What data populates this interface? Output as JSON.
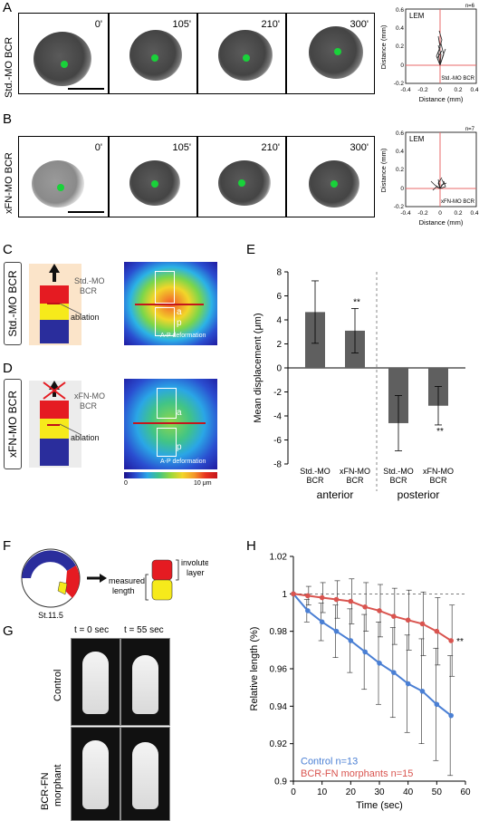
{
  "panels": {
    "A": "A",
    "B": "B",
    "C": "C",
    "D": "D",
    "E": "E",
    "F": "F",
    "G": "G",
    "H": "H"
  },
  "row_a": {
    "side_label": "Std.-MO BCR",
    "times": [
      "0'",
      "105'",
      "210'",
      "300'"
    ]
  },
  "row_b": {
    "side_label": "xFN-MO BCR",
    "times": [
      "0'",
      "105'",
      "210'",
      "300'"
    ]
  },
  "track_a": {
    "corner": "LEM",
    "n": "n=6",
    "inner": "Std.-MO BCR",
    "xlabel": "Distance (mm)",
    "ylabel": "Distance (mm)",
    "xticks": [
      "-0.4",
      "-0.2",
      "0",
      "0.2",
      "0.4"
    ],
    "yticks": [
      "0.6",
      "0.4",
      "0.2",
      "0",
      "-0.2"
    ]
  },
  "track_b": {
    "corner": "LEM",
    "n": "n=7",
    "inner": "xFN-MO BCR",
    "xlabel": "Distance (mm)",
    "ylabel": "Distance (mm)",
    "xticks": [
      "-0.4",
      "-0.2",
      "0",
      "0.2",
      "0.4"
    ],
    "yticks": [
      "0.6",
      "0.4",
      "0.2",
      "0",
      "-0.2"
    ]
  },
  "panel_c": {
    "side_label": "Std.-MO BCR",
    "tissue_label": "Std.-MO\nBCR",
    "ablation": "ablation",
    "map_a": "a",
    "map_p": "p",
    "map_caption": "A-P deformation"
  },
  "panel_d": {
    "side_label": "xFN-MO BCR",
    "tissue_label": "xFN-MO\nBCR",
    "ablation": "ablation",
    "map_a": "a",
    "map_p": "p",
    "map_caption": "A-P deformation"
  },
  "colorbar": {
    "min": "0",
    "max": "10 μm"
  },
  "panel_f": {
    "stage": "St.11.5",
    "measured": "measured\nlength",
    "involuted": "involuted\nlayer"
  },
  "panel_g": {
    "t0": "t = 0 sec",
    "t1": "t = 55 sec",
    "row1": "Control",
    "row2": "BCR-FN\nmorphant"
  },
  "colors": {
    "control": "#4a7fd4",
    "morphant": "#d9544f",
    "bar": "#5f5f5f",
    "dot": "#19d23a"
  },
  "chart_data": [
    {
      "type": "bar",
      "panel": "E",
      "ylabel": "Mean displacement (μm)",
      "ylim": [
        -8,
        8
      ],
      "yticks": [
        8,
        6,
        4,
        2,
        0,
        -2,
        -4,
        -6,
        -8
      ],
      "categories": [
        "Std.-MO\nBCR",
        "xFN-MO\nBCR",
        "Std.-MO\nBCR",
        "xFN-MO\nBCR"
      ],
      "groups": [
        "anterior",
        "posterior"
      ],
      "values": [
        4.65,
        3.1,
        -4.6,
        -3.15
      ],
      "errors": [
        2.6,
        1.85,
        2.3,
        1.6
      ],
      "significance": [
        "",
        "**",
        "",
        "**"
      ]
    },
    {
      "type": "line",
      "panel": "H",
      "xlabel": "Time (sec)",
      "ylabel": "Relative length (%)",
      "xlim": [
        0,
        60
      ],
      "ylim": [
        0.9,
        1.02
      ],
      "xticks": [
        0,
        10,
        20,
        30,
        40,
        50,
        60
      ],
      "yticks": [
        1.02,
        1,
        0.98,
        0.96,
        0.94,
        0.92,
        0.9
      ],
      "x": [
        0,
        5,
        10,
        15,
        20,
        25,
        30,
        35,
        40,
        45,
        50,
        55
      ],
      "series": [
        {
          "name": "Control n=13",
          "values": [
            1.0,
            0.991,
            0.985,
            0.98,
            0.975,
            0.969,
            0.963,
            0.958,
            0.952,
            0.948,
            0.941,
            0.935
          ],
          "errors": [
            0,
            0.006,
            0.01,
            0.014,
            0.017,
            0.02,
            0.022,
            0.024,
            0.026,
            0.028,
            0.03,
            0.032
          ]
        },
        {
          "name": "BCR-FN morphants n=15",
          "values": [
            1.0,
            0.999,
            0.998,
            0.997,
            0.996,
            0.993,
            0.991,
            0.988,
            0.986,
            0.984,
            0.98,
            0.975
          ],
          "errors": [
            0,
            0.005,
            0.008,
            0.01,
            0.012,
            0.013,
            0.014,
            0.015,
            0.016,
            0.017,
            0.018,
            0.019
          ]
        }
      ],
      "significance": "**",
      "reference_line": 1
    }
  ]
}
